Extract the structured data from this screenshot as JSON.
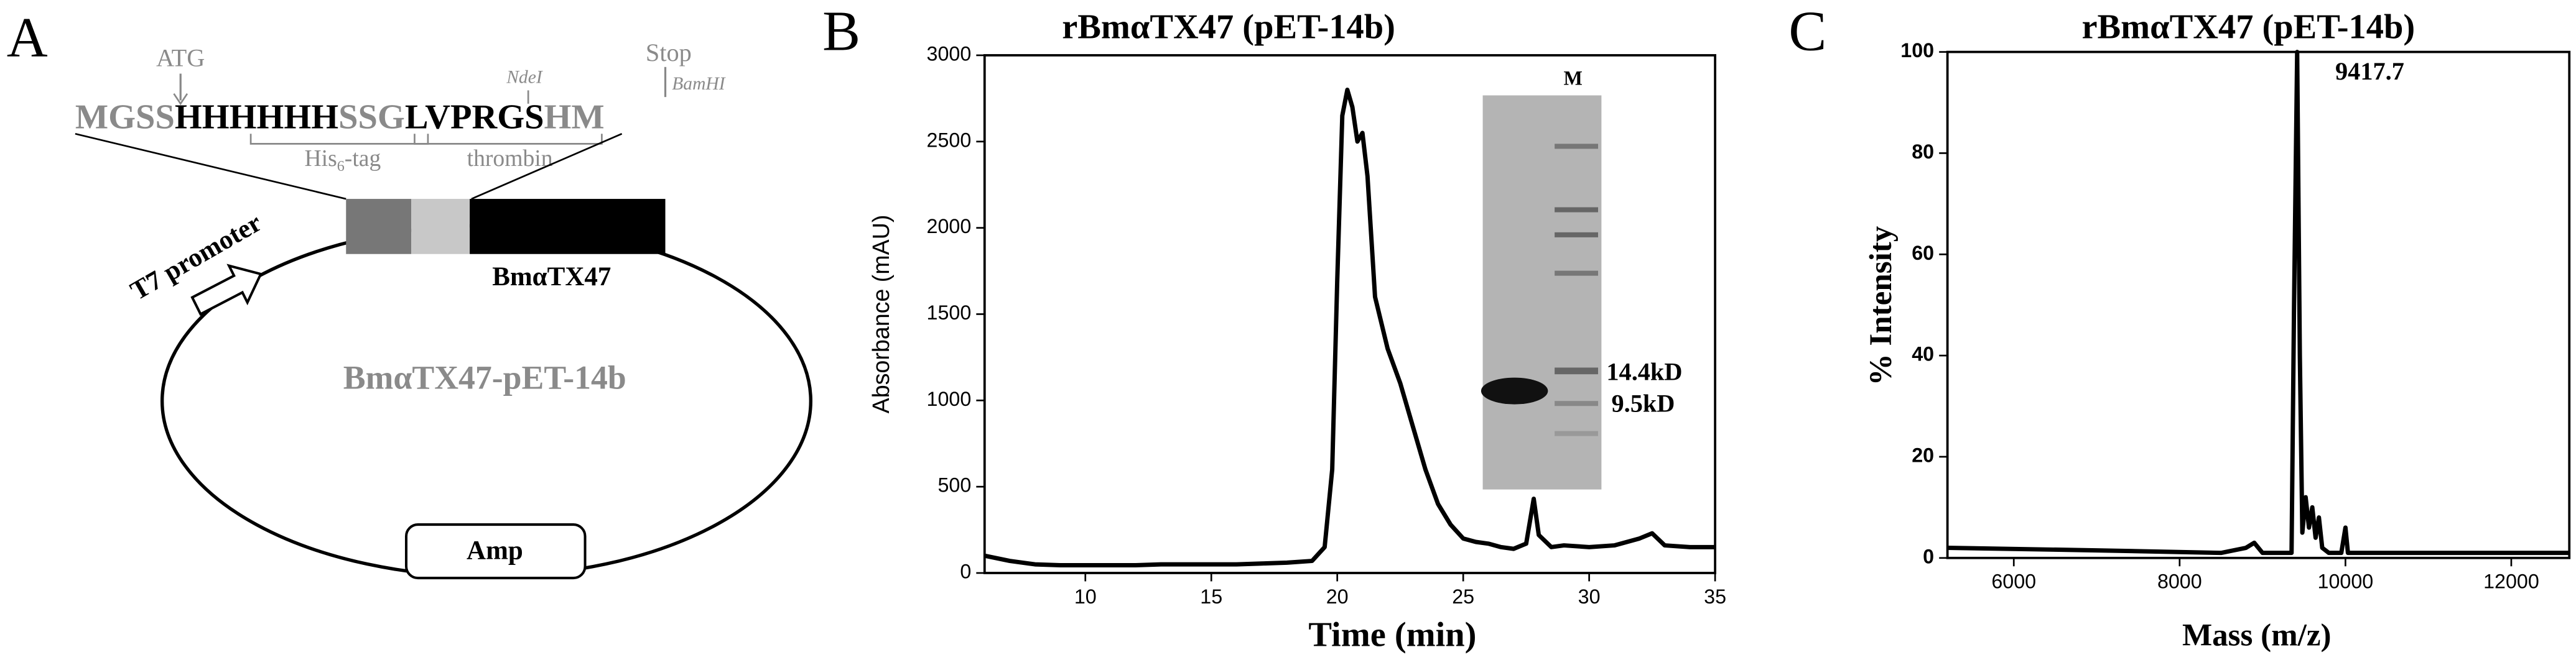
{
  "panel_labels": [
    "A",
    "B",
    "C"
  ],
  "panel_a": {
    "start_label": "ATG",
    "stop_label": "Stop",
    "site_1": "NdeI",
    "site_2": "BamHI",
    "sequence": [
      "MGSS",
      "HHHHHH",
      "SSG",
      "LVPRGS",
      "HM"
    ],
    "his_tag": [
      "His",
      "6",
      "-tag"
    ],
    "thrombin": "thrombin",
    "promoter": "T7 promoter",
    "gene": "BmαTX47",
    "plasmid": "BmαTX47-pET-14b",
    "marker": "Amp"
  },
  "chart_data": [
    {
      "type": "line",
      "title": "rBmαTX47 (pET-14b)",
      "x_label": "Time (min)",
      "y_label": "Absorbance (mAU)",
      "xlim": [
        6,
        35
      ],
      "ylim": [
        0,
        3000
      ],
      "xticks": [
        10,
        15,
        20,
        25,
        30,
        35
      ],
      "yticks": [
        0,
        500,
        1000,
        1500,
        2000,
        2500,
        3000
      ],
      "x": [
        6,
        7,
        8,
        9,
        10,
        11,
        12,
        13,
        14,
        15,
        16,
        17,
        18,
        19,
        19.5,
        19.8,
        20,
        20.2,
        20.4,
        20.6,
        20.8,
        21,
        21.2,
        21.5,
        22,
        22.5,
        23,
        23.5,
        24,
        24.5,
        25,
        25.5,
        26,
        26.5,
        27,
        27.5,
        27.8,
        28,
        28.5,
        29,
        30,
        31,
        32,
        32.5,
        33,
        34,
        35
      ],
      "series": [
        {
          "color": "#000000",
          "values": [
            100,
            70,
            50,
            45,
            45,
            45,
            45,
            50,
            50,
            50,
            50,
            55,
            60,
            70,
            150,
            600,
            1700,
            2650,
            2800,
            2700,
            2500,
            2550,
            2300,
            1600,
            1300,
            1100,
            850,
            600,
            400,
            280,
            200,
            180,
            170,
            150,
            140,
            170,
            430,
            220,
            150,
            160,
            150,
            160,
            200,
            230,
            160,
            150,
            150
          ]
        }
      ],
      "inset_labels": [
        "M",
        "14.4kD",
        "9.5kD"
      ]
    },
    {
      "type": "line",
      "title": "rBmαTX47 (pET-14b)",
      "x_label": "Mass (m/z)",
      "y_label": "% Intensity",
      "xlim": [
        5200,
        12700
      ],
      "ylim": [
        0,
        100
      ],
      "xticks": [
        6000,
        8000,
        10000,
        12000
      ],
      "yticks": [
        0,
        20,
        40,
        60,
        80,
        100
      ],
      "x": [
        5200,
        7000,
        8500,
        8800,
        8900,
        9000,
        9350,
        9380,
        9417.7,
        9450,
        9480,
        9520,
        9560,
        9600,
        9640,
        9680,
        9720,
        9800,
        9950,
        10000,
        10030,
        12700
      ],
      "series": [
        {
          "color": "#000000",
          "values": [
            2,
            1.5,
            1,
            2,
            3,
            1,
            1,
            50,
            100,
            40,
            5,
            12,
            6,
            10,
            4,
            8,
            2,
            1,
            1,
            6,
            1,
            1
          ]
        }
      ],
      "peak_label": "9417.7"
    }
  ]
}
